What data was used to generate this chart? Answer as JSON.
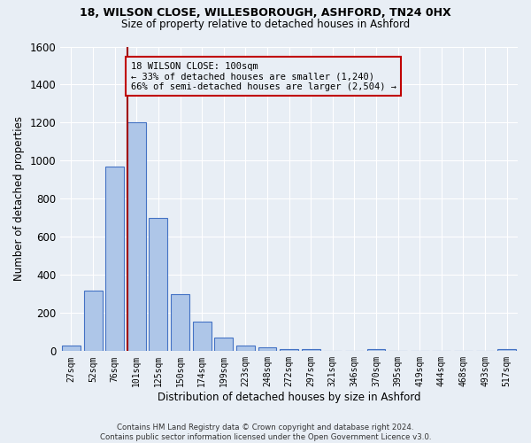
{
  "title1": "18, WILSON CLOSE, WILLESBOROUGH, ASHFORD, TN24 0HX",
  "title2": "Size of property relative to detached houses in Ashford",
  "xlabel": "Distribution of detached houses by size in Ashford",
  "ylabel": "Number of detached properties",
  "footnote": "Contains HM Land Registry data © Crown copyright and database right 2024.\nContains public sector information licensed under the Open Government Licence v3.0.",
  "bar_labels": [
    "27sqm",
    "52sqm",
    "76sqm",
    "101sqm",
    "125sqm",
    "150sqm",
    "174sqm",
    "199sqm",
    "223sqm",
    "248sqm",
    "272sqm",
    "297sqm",
    "321sqm",
    "346sqm",
    "370sqm",
    "395sqm",
    "419sqm",
    "444sqm",
    "468sqm",
    "493sqm",
    "517sqm"
  ],
  "bar_values": [
    30,
    320,
    970,
    1200,
    700,
    300,
    155,
    70,
    28,
    20,
    12,
    12,
    0,
    0,
    12,
    0,
    0,
    0,
    0,
    0,
    12
  ],
  "bar_color": "#aec6e8",
  "bar_edge_color": "#4472c4",
  "ylim": [
    0,
    1600
  ],
  "yticks": [
    0,
    200,
    400,
    600,
    800,
    1000,
    1200,
    1400,
    1600
  ],
  "vline_color": "#a00000",
  "vline_bar_index": 3,
  "annotation_line1": "18 WILSON CLOSE: 100sqm",
  "annotation_line2": "← 33% of detached houses are smaller (1,240)",
  "annotation_line3": "66% of semi-detached houses are larger (2,504) →",
  "annotation_box_color": "#c00000",
  "background_color": "#e8eef5",
  "grid_color": "#ffffff"
}
